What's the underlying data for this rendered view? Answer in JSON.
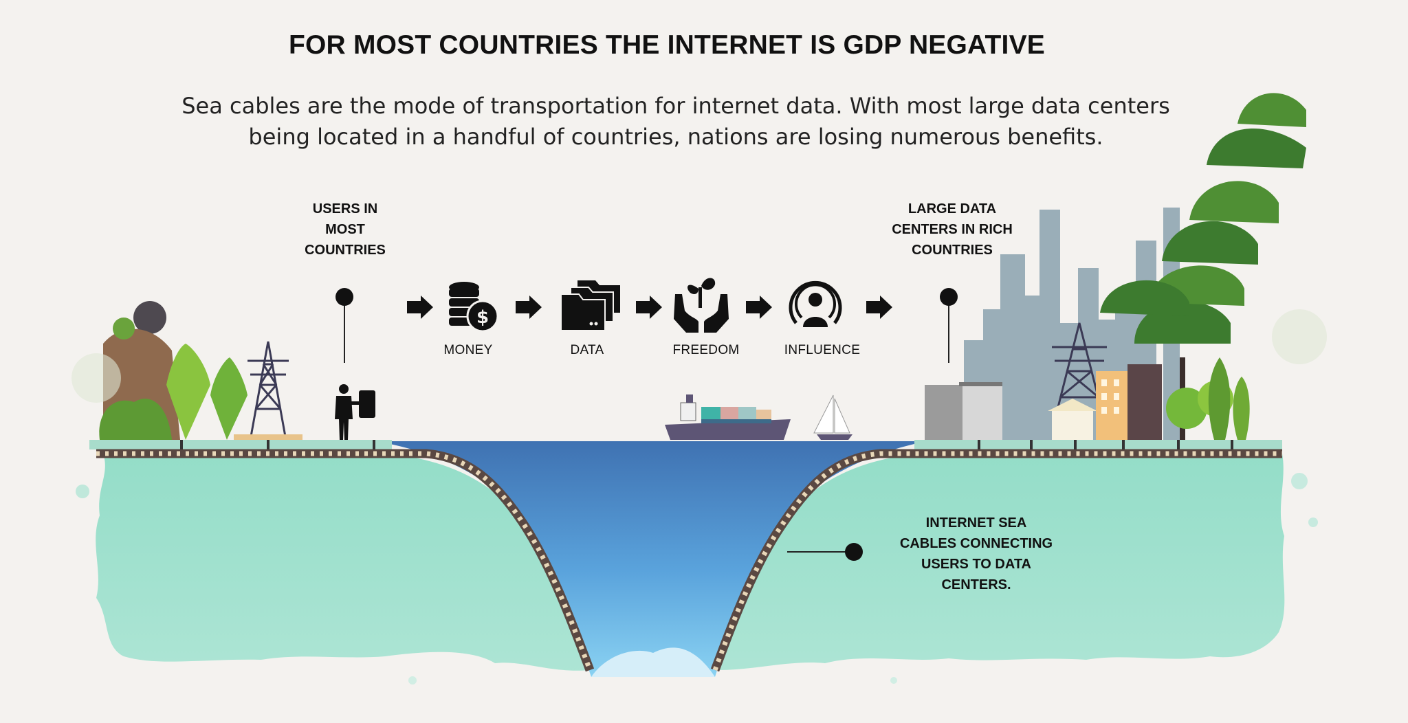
{
  "title": "FOR MOST COUNTRIES THE INTERNET IS GDP NEGATIVE",
  "subtitle_line1": "Sea cables are the mode of transportation for internet data. With most large data centers",
  "subtitle_line2": "being located in a handful of countries, nations are losing numerous benefits.",
  "callouts": {
    "users": [
      "USERS IN",
      "MOST",
      "COUNTRIES"
    ],
    "datacenters": [
      "LARGE DATA",
      "CENTERS IN RICH",
      "COUNTRIES"
    ],
    "cables": [
      "INTERNET SEA",
      "CABLES CONNECTING",
      "USERS TO DATA",
      "CENTERS."
    ]
  },
  "flow": [
    {
      "label": "MONEY",
      "icon": "coins-dollar-icon"
    },
    {
      "label": "DATA",
      "icon": "folders-icon"
    },
    {
      "label": "FREEDOM",
      "icon": "hands-sprout-icon"
    },
    {
      "label": "INFLUENCE",
      "icon": "broadcast-person-icon"
    }
  ],
  "colors": {
    "land": "#9fe0cc",
    "water_top": "#3f74b4",
    "water_bottom": "#7cc7ee",
    "cable": "#5a4842",
    "icon": "#111111"
  }
}
